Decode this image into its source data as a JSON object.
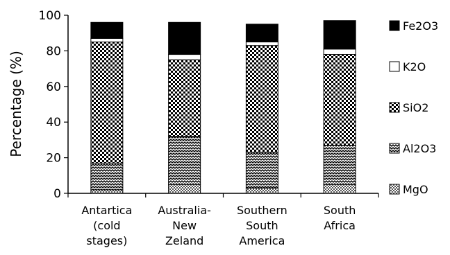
{
  "chart_data": {
    "type": "bar",
    "stacked": true,
    "ylabel": "Percentage (%)",
    "ylim": [
      0,
      100
    ],
    "yticks": [
      "0",
      "20",
      "40",
      "60",
      "80",
      "100"
    ],
    "grid": false,
    "legend_position": "right",
    "categories": [
      [
        "Antartica",
        "(cold",
        "stages)"
      ],
      [
        "Australia-",
        "New",
        "Zeland"
      ],
      [
        "Southern",
        "South",
        "America"
      ],
      [
        "South",
        "Africa"
      ]
    ],
    "series": [
      {
        "name": "MgO",
        "pattern": "checker-small",
        "values": [
          2,
          5,
          3,
          5
        ]
      },
      {
        "name": "Al2O3",
        "pattern": "wave",
        "values": [
          15,
          27,
          20,
          22
        ]
      },
      {
        "name": "SiO2",
        "pattern": "checker",
        "values": [
          68,
          43,
          60,
          51
        ]
      },
      {
        "name": "K2O",
        "pattern": "white",
        "values": [
          2,
          3,
          2,
          3
        ]
      },
      {
        "name": "Fe2O3",
        "pattern": "black",
        "values": [
          9,
          18,
          10,
          16
        ]
      }
    ],
    "legend_order": [
      "Fe2O3",
      "K2O",
      "SiO2",
      "Al2O3",
      "MgO"
    ]
  }
}
